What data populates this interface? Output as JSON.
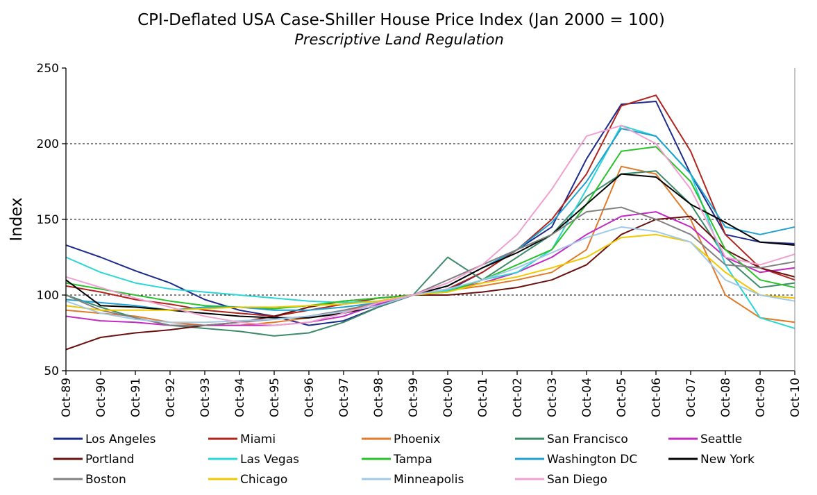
{
  "chart_data": {
    "type": "line",
    "title": "CPI-Deflated USA Case-Shiller House Price Index (Jan 2000 = 100)",
    "subtitle": "Prescriptive Land Regulation",
    "xlabel": "",
    "ylabel": "Index",
    "ylim": [
      50,
      250
    ],
    "yticks": [
      50,
      100,
      150,
      200,
      250
    ],
    "grid": "dashed horizontal at 100, 150, 200",
    "legend_position": "bottom",
    "x": [
      "Oct-89",
      "Oct-90",
      "Oct-91",
      "Oct-92",
      "Oct-93",
      "Oct-94",
      "Oct-95",
      "Oct-96",
      "Oct-97",
      "Oct-98",
      "Oct-99",
      "Oct-00",
      "Oct-01",
      "Oct-02",
      "Oct-03",
      "Oct-04",
      "Oct-05",
      "Oct-06",
      "Oct-07",
      "Oct-08",
      "Oct-09",
      "Oct-10"
    ],
    "series": [
      {
        "name": "Los Angeles",
        "color": "#1c2a8c",
        "values": [
          133,
          125,
          116,
          108,
          97,
          90,
          86,
          80,
          83,
          92,
          100,
          103,
          115,
          130,
          145,
          190,
          226,
          228,
          180,
          140,
          135,
          134
        ]
      },
      {
        "name": "Miami",
        "color": "#b0241c",
        "values": [
          106,
          102,
          97,
          94,
          90,
          88,
          86,
          90,
          94,
          98,
          100,
          104,
          115,
          130,
          150,
          180,
          225,
          232,
          195,
          140,
          118,
          110
        ]
      },
      {
        "name": "Phoenix",
        "color": "#e07a2a",
        "values": [
          90,
          88,
          86,
          82,
          80,
          80,
          82,
          85,
          89,
          95,
          100,
          103,
          106,
          110,
          115,
          130,
          185,
          180,
          150,
          100,
          85,
          82
        ]
      },
      {
        "name": "San Francisco",
        "color": "#3d8a6a",
        "values": [
          100,
          92,
          85,
          80,
          78,
          76,
          73,
          75,
          82,
          92,
          100,
          125,
          110,
          125,
          140,
          165,
          180,
          182,
          160,
          125,
          105,
          108
        ]
      },
      {
        "name": "Seattle",
        "color": "#c22ac2",
        "values": [
          86,
          83,
          82,
          80,
          80,
          80,
          80,
          82,
          86,
          94,
          100,
          104,
          108,
          115,
          125,
          140,
          152,
          155,
          145,
          125,
          115,
          118
        ]
      },
      {
        "name": "Portland",
        "color": "#6a1010",
        "values": [
          64,
          72,
          75,
          77,
          80,
          82,
          86,
          92,
          96,
          98,
          100,
          100,
          102,
          105,
          110,
          120,
          140,
          150,
          152,
          130,
          118,
          112
        ]
      },
      {
        "name": "Las Vegas",
        "color": "#2ad6d6",
        "values": [
          125,
          115,
          108,
          104,
          102,
          100,
          98,
          96,
          95,
          96,
          100,
          103,
          110,
          115,
          130,
          170,
          212,
          205,
          180,
          120,
          85,
          78
        ]
      },
      {
        "name": "Tampa",
        "color": "#2ac22a",
        "values": [
          108,
          104,
          100,
          96,
          93,
          92,
          91,
          93,
          96,
          98,
          100,
          102,
          110,
          120,
          130,
          160,
          195,
          198,
          175,
          130,
          110,
          105
        ]
      },
      {
        "name": "Washington DC",
        "color": "#1ea0d0",
        "values": [
          97,
          95,
          93,
          90,
          92,
          92,
          90,
          90,
          92,
          95,
          100,
          106,
          118,
          130,
          148,
          175,
          210,
          205,
          180,
          145,
          140,
          145
        ]
      },
      {
        "name": "New York",
        "color": "#000000",
        "values": [
          110,
          93,
          92,
          90,
          88,
          86,
          85,
          85,
          88,
          93,
          100,
          106,
          118,
          128,
          140,
          160,
          180,
          178,
          160,
          148,
          135,
          133
        ]
      },
      {
        "name": "Boston",
        "color": "#808080",
        "values": [
          100,
          90,
          85,
          80,
          80,
          82,
          84,
          86,
          90,
          95,
          100,
          110,
          120,
          130,
          140,
          155,
          158,
          150,
          140,
          120,
          118,
          122
        ]
      },
      {
        "name": "Chicago",
        "color": "#f0c800",
        "values": [
          93,
          90,
          90,
          90,
          91,
          92,
          92,
          93,
          94,
          96,
          100,
          102,
          108,
          112,
          118,
          125,
          138,
          140,
          135,
          115,
          100,
          98
        ]
      },
      {
        "name": "Minneapolis",
        "color": "#a0c8e8",
        "values": [
          96,
          88,
          84,
          82,
          82,
          83,
          84,
          86,
          89,
          93,
          100,
          104,
          110,
          118,
          128,
          138,
          145,
          142,
          135,
          110,
          100,
          96
        ]
      },
      {
        "name": "San Diego",
        "color": "#f0a0d0",
        "values": [
          112,
          105,
          98,
          92,
          86,
          82,
          80,
          82,
          88,
          95,
          100,
          108,
          120,
          140,
          170,
          205,
          212,
          200,
          170,
          125,
          120,
          127
        ]
      }
    ]
  }
}
